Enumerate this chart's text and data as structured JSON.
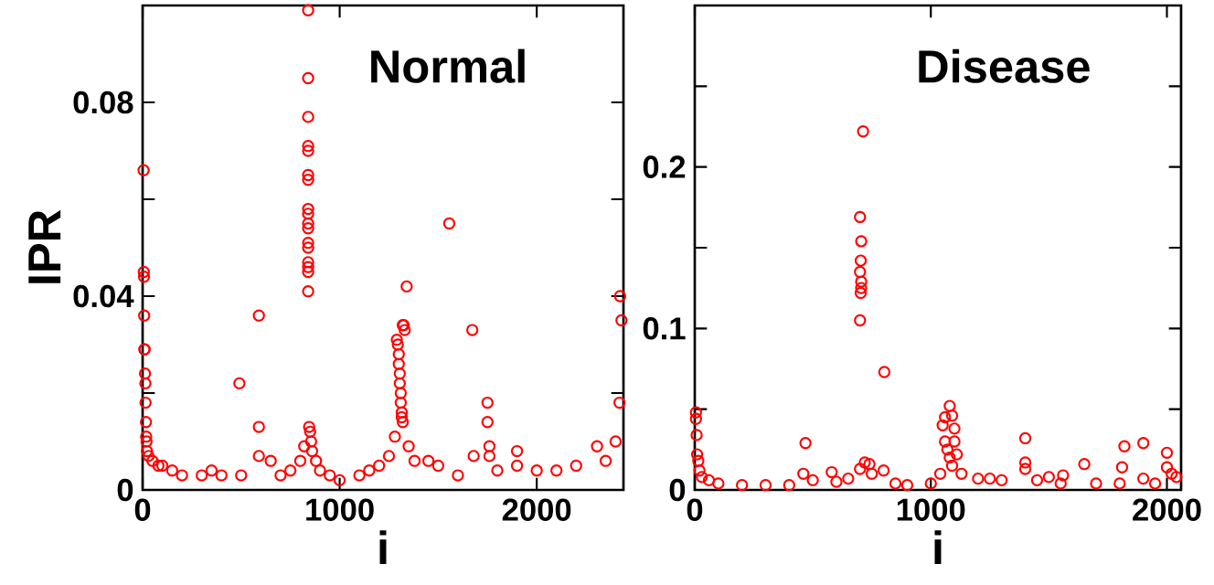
{
  "chart_data": [
    {
      "type": "scatter",
      "title": "Normal",
      "xlabel": "i",
      "ylabel": "IPR",
      "marker": "circle",
      "color": "#ff0000",
      "xlim": [
        0,
        2440
      ],
      "ylim": [
        0,
        0.1
      ],
      "xticks": [
        0,
        1000,
        2000
      ],
      "yticks": [
        0,
        {
          "value": 0.02,
          "label": null
        },
        0.04,
        {
          "value": 0.06,
          "label": null
        },
        0.08
      ],
      "x": [
        5,
        6,
        7,
        8,
        9,
        10,
        12,
        14,
        15,
        17,
        18,
        20,
        22,
        30,
        50,
        80,
        100,
        150,
        200,
        300,
        350,
        400,
        491,
        500,
        590,
        590,
        590,
        650,
        700,
        750,
        800,
        820,
        840,
        840,
        840,
        840,
        840,
        840,
        840,
        840,
        840,
        840,
        840,
        840,
        840,
        840,
        840,
        840,
        840,
        845,
        850,
        855,
        860,
        880,
        900,
        950,
        1000,
        1100,
        1150,
        1200,
        1250,
        1280,
        1290,
        1295,
        1300,
        1300,
        1305,
        1305,
        1310,
        1310,
        1315,
        1315,
        1320,
        1320,
        1325,
        1330,
        1340,
        1350,
        1380,
        1450,
        1500,
        1556,
        1600,
        1673,
        1680,
        1750,
        1750,
        1760,
        1760,
        1800,
        1900,
        1900,
        2000,
        2100,
        2200,
        2306,
        2350,
        2400,
        2420,
        2423,
        2430
      ],
      "values": [
        0.066,
        0.045,
        0.044,
        0.036,
        0.029,
        0.029,
        0.024,
        0.022,
        0.018,
        0.014,
        0.011,
        0.01,
        0.008,
        0.007,
        0.006,
        0.005,
        0.005,
        0.004,
        0.003,
        0.003,
        0.004,
        0.003,
        0.022,
        0.003,
        0.036,
        0.013,
        0.007,
        0.006,
        0.003,
        0.004,
        0.006,
        0.009,
        0.099,
        0.085,
        0.077,
        0.071,
        0.07,
        0.065,
        0.064,
        0.058,
        0.057,
        0.055,
        0.054,
        0.051,
        0.05,
        0.047,
        0.046,
        0.045,
        0.041,
        0.013,
        0.012,
        0.01,
        0.008,
        0.006,
        0.004,
        0.003,
        0.002,
        0.003,
        0.004,
        0.005,
        0.007,
        0.011,
        0.031,
        0.03,
        0.028,
        0.026,
        0.024,
        0.022,
        0.02,
        0.018,
        0.016,
        0.015,
        0.014,
        0.034,
        0.034,
        0.033,
        0.042,
        0.009,
        0.006,
        0.006,
        0.005,
        0.055,
        0.003,
        0.033,
        0.007,
        0.018,
        0.014,
        0.009,
        0.007,
        0.004,
        0.008,
        0.005,
        0.004,
        0.004,
        0.005,
        0.009,
        0.006,
        0.01,
        0.018,
        0.04,
        0.035
      ]
    },
    {
      "type": "scatter",
      "title": "Disease",
      "xlabel": "i",
      "marker": "circle",
      "color": "#ff0000",
      "xlim": [
        0,
        2060
      ],
      "ylim": [
        0,
        0.3
      ],
      "xticks": [
        0,
        1000,
        2000
      ],
      "yticks": [
        0,
        {
          "value": 0.05,
          "label": null
        },
        0.1,
        {
          "value": 0.15,
          "label": null
        },
        0.2,
        {
          "value": 0.25,
          "label": null
        }
      ],
      "x": [
        5,
        5,
        8,
        10,
        15,
        20,
        30,
        60,
        100,
        200,
        300,
        400,
        469,
        460,
        500,
        580,
        600,
        650,
        700,
        713,
        700,
        705,
        703,
        700,
        705,
        705,
        703,
        700,
        720,
        740,
        750,
        803,
        800,
        850,
        900,
        1000,
        1040,
        1050,
        1060,
        1080,
        1090,
        1100,
        1060,
        1070,
        1080,
        1090,
        1100,
        1110,
        1130,
        1200,
        1250,
        1300,
        1400,
        1400,
        1400,
        1450,
        1500,
        1550,
        1560,
        1650,
        1700,
        1800,
        1810,
        1820,
        1900,
        1900,
        1950,
        2000,
        2000,
        2020,
        2040
      ],
      "values": [
        0.048,
        0.044,
        0.034,
        0.022,
        0.018,
        0.012,
        0.008,
        0.006,
        0.004,
        0.003,
        0.003,
        0.003,
        0.029,
        0.01,
        0.006,
        0.011,
        0.005,
        0.007,
        0.013,
        0.222,
        0.169,
        0.154,
        0.142,
        0.135,
        0.129,
        0.125,
        0.122,
        0.105,
        0.017,
        0.016,
        0.01,
        0.073,
        0.012,
        0.004,
        0.003,
        0.004,
        0.01,
        0.04,
        0.045,
        0.052,
        0.046,
        0.038,
        0.03,
        0.025,
        0.02,
        0.015,
        0.03,
        0.022,
        0.01,
        0.007,
        0.007,
        0.006,
        0.032,
        0.017,
        0.013,
        0.006,
        0.008,
        0.004,
        0.009,
        0.016,
        0.004,
        0.004,
        0.014,
        0.027,
        0.029,
        0.007,
        0.004,
        0.023,
        0.014,
        0.01,
        0.008
      ]
    }
  ]
}
